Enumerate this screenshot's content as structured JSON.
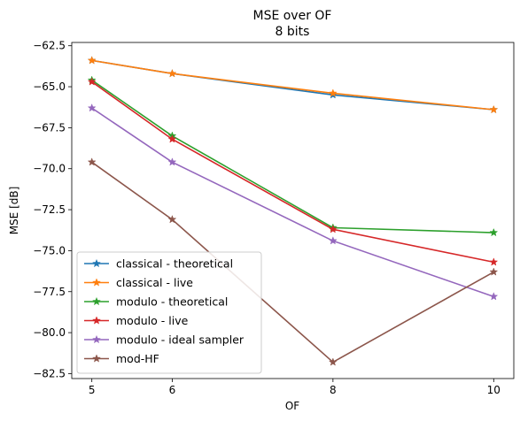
{
  "chart_data": {
    "type": "line",
    "title": "MSE over OF",
    "subtitle": "8 bits",
    "xlabel": "OF",
    "ylabel": "MSE [dB]",
    "x": [
      5,
      6,
      8,
      10
    ],
    "xticks": [
      5,
      6,
      8,
      10
    ],
    "xlim": [
      4.75,
      10.25
    ],
    "yticks": [
      -62.5,
      -65.0,
      -67.5,
      -70.0,
      -72.5,
      -75.0,
      -77.5,
      -80.0,
      -82.5
    ],
    "ytick_labels": [
      "−62.5",
      "−65.0",
      "−67.5",
      "−70.0",
      "−72.5",
      "−75.0",
      "−77.5",
      "−80.0",
      "−82.5"
    ],
    "ylim": [
      -82.8,
      -62.3
    ],
    "grid": false,
    "legend_position": "lower-left",
    "marker": "star",
    "series": [
      {
        "name": "classical - theoretical",
        "color": "#1f77b4",
        "values": [
          -63.4,
          -64.2,
          -65.5,
          -66.4
        ]
      },
      {
        "name": "classical - live",
        "color": "#ff7f0e",
        "values": [
          -63.4,
          -64.2,
          -65.4,
          -66.4
        ]
      },
      {
        "name": "modulo - theoretical",
        "color": "#2ca02c",
        "values": [
          -64.6,
          -68.0,
          -73.6,
          -73.9
        ]
      },
      {
        "name": "modulo - live",
        "color": "#d62728",
        "values": [
          -64.7,
          -68.2,
          -73.7,
          -75.7
        ]
      },
      {
        "name": "modulo - ideal sampler",
        "color": "#9467bd",
        "values": [
          -66.3,
          -69.6,
          -74.4,
          -77.8
        ]
      },
      {
        "name": "mod-HF",
        "color": "#8c564b",
        "values": [
          -69.6,
          -73.1,
          -81.8,
          -76.3
        ]
      }
    ]
  }
}
